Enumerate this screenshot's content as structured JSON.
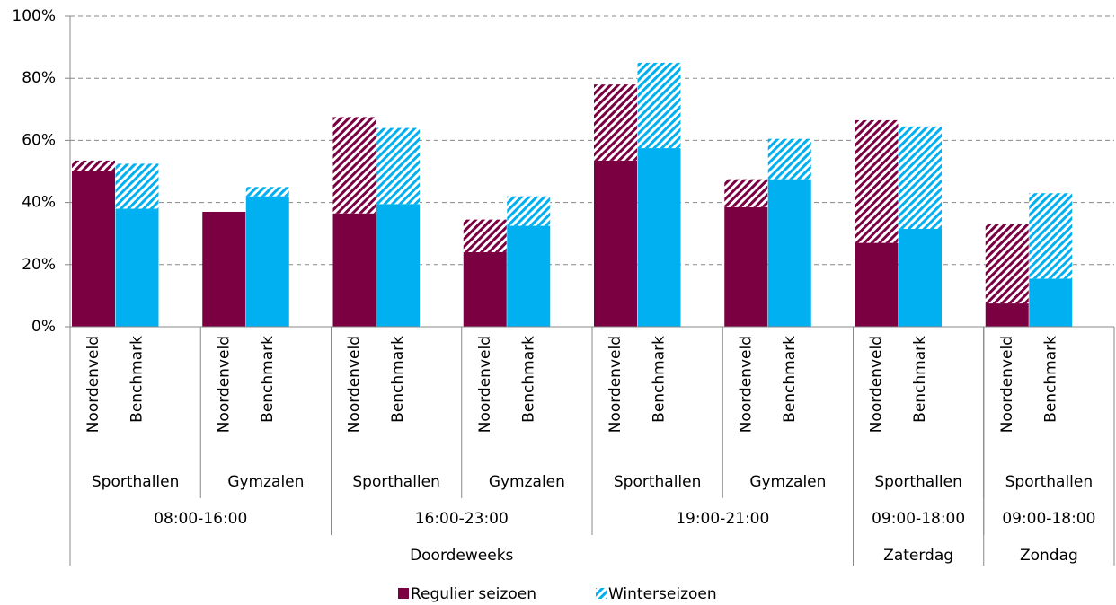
{
  "chart_data": {
    "type": "stacked_bar",
    "categories": [
      "Noordenveld",
      "Benchmark",
      "Noordenveld",
      "Benchmark",
      "Noordenveld",
      "Benchmark",
      "Noordenveld",
      "Benchmark",
      "Noordenveld",
      "Benchmark",
      "Noordenveld",
      "Benchmark",
      "Noordenveld",
      "Benchmark",
      "Noordenveld",
      "Benchmark"
    ],
    "bar_colors": [
      "#7b0041",
      "#00b0f0",
      "#7b0041",
      "#00b0f0",
      "#7b0041",
      "#00b0f0",
      "#7b0041",
      "#00b0f0",
      "#7b0041",
      "#00b0f0",
      "#7b0041",
      "#00b0f0",
      "#7b0041",
      "#00b0f0",
      "#7b0041",
      "#00b0f0"
    ],
    "facility_groups": [
      "Sporthallen",
      "Gymzalen",
      "Sporthallen",
      "Gymzalen",
      "Sporthallen",
      "Gymzalen",
      "Sporthallen",
      "Sporthallen"
    ],
    "time_groups": [
      {
        "label": "08:00-16:00",
        "span": 4
      },
      {
        "label": "16:00-23:00",
        "span": 4
      },
      {
        "label": "19:00-21:00",
        "span": 4
      },
      {
        "label": "09:00-18:00",
        "span": 2
      },
      {
        "label": "09:00-18:00",
        "span": 2
      }
    ],
    "day_groups": [
      {
        "label": "Doordeweeks",
        "span": 12
      },
      {
        "label": "Zaterdag",
        "span": 2
      },
      {
        "label": "Zondag",
        "span": 2
      }
    ],
    "series": [
      {
        "name": "Regulier seizoen",
        "color": "#7b0041",
        "pattern": "solid",
        "values": [
          50,
          38,
          37,
          42,
          36.5,
          39.5,
          24,
          32.5,
          53.5,
          57.5,
          38.5,
          47.5,
          27,
          31.5,
          7.5,
          15.5
        ]
      },
      {
        "name": "Winterseizoen",
        "color": "#00b0f0",
        "pattern": "hatched",
        "values": [
          3.5,
          14.5,
          0,
          3,
          31,
          24.5,
          10.5,
          9.5,
          24.5,
          27.5,
          9,
          13,
          39.5,
          33,
          25.5,
          27.5
        ]
      }
    ],
    "ylim": [
      0,
      100
    ],
    "yticks": [
      {
        "value": 0,
        "label": "0%"
      },
      {
        "value": 20,
        "label": "20%"
      },
      {
        "value": 40,
        "label": "40%"
      },
      {
        "value": 60,
        "label": "60%"
      },
      {
        "value": 80,
        "label": "80%"
      },
      {
        "value": 100,
        "label": "100%"
      }
    ],
    "grid": true
  }
}
